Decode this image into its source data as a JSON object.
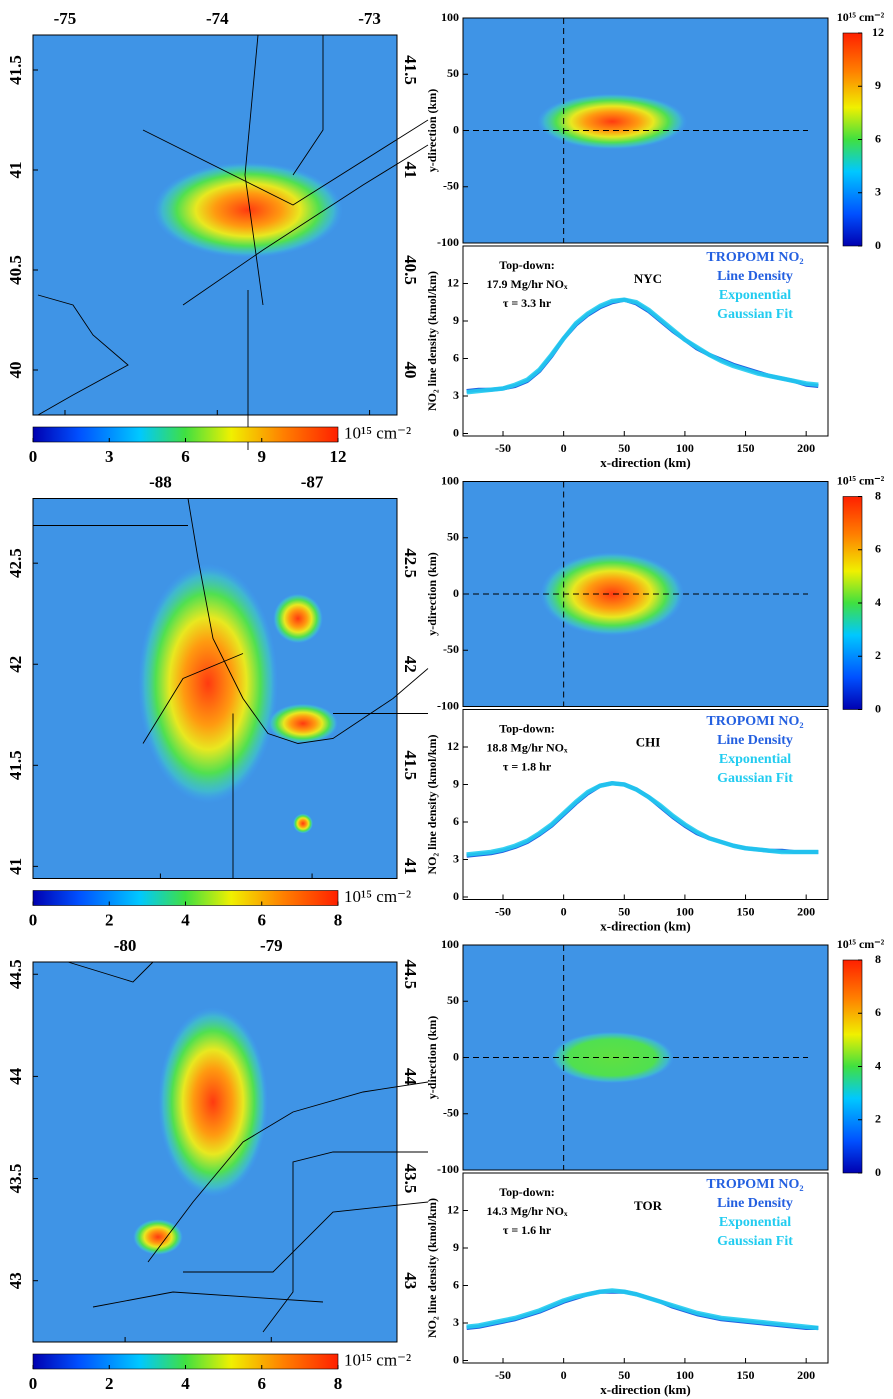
{
  "chart_data": [
    {
      "type": "map",
      "xlim": [
        -75.21,
        -72.82
      ],
      "xticks": [
        -75,
        -74,
        -73
      ],
      "ylim": [
        39.775,
        41.675
      ],
      "yticks": [
        41.5,
        41,
        40.5,
        40
      ],
      "colorbar": {
        "label": "10¹⁵ cm⁻²",
        "lim": [
          0,
          12
        ],
        "ticks": [
          0,
          3,
          6,
          9,
          12
        ]
      }
    },
    {
      "type": "heatmap",
      "ylabel": "y-direction (km)",
      "xlim": [
        -83,
        218
      ],
      "ylim": [
        -100,
        100
      ],
      "yticks": [
        100,
        50,
        0,
        -50,
        -100
      ],
      "colorbar": {
        "label": "10¹⁵ cm⁻²",
        "lim": [
          0,
          12
        ],
        "ticks": [
          0,
          3,
          6,
          9,
          12
        ]
      }
    },
    {
      "type": "line",
      "title": "NYC",
      "annotations": [
        "Top-down:",
        "17.9 Mg/hr NOₓ",
        "τ = 3.3 hr"
      ],
      "xlabel": "x-direction (km)",
      "ylabel": "NO₂ line density (kmol/km)",
      "xlim": [
        -83,
        218
      ],
      "xticks": [
        -50,
        0,
        50,
        100,
        150,
        200
      ],
      "ylim": [
        -0.2,
        15
      ],
      "yticks": [
        0,
        3,
        6,
        9,
        12
      ],
      "x": [
        -80,
        -70,
        -60,
        -50,
        -40,
        -30,
        -20,
        -10,
        0,
        10,
        20,
        30,
        40,
        50,
        60,
        70,
        80,
        90,
        100,
        110,
        120,
        130,
        140,
        150,
        160,
        170,
        180,
        190,
        200,
        210
      ],
      "series": [
        {
          "name": "TROPOMI NO₂ Line Density",
          "color": "#2460e0",
          "values": [
            3.4,
            3.5,
            3.5,
            3.6,
            3.8,
            4.2,
            5.0,
            6.2,
            7.6,
            8.7,
            9.5,
            10.1,
            10.5,
            10.7,
            10.4,
            9.8,
            9.0,
            8.2,
            7.5,
            6.8,
            6.3,
            5.9,
            5.5,
            5.2,
            4.9,
            4.6,
            4.4,
            4.2,
            3.9,
            3.8
          ]
        },
        {
          "name": "Exponential Gaussian Fit",
          "color": "#22ccf0",
          "values": [
            3.3,
            3.4,
            3.5,
            3.6,
            3.9,
            4.3,
            5.1,
            6.3,
            7.6,
            8.8,
            9.6,
            10.2,
            10.6,
            10.7,
            10.5,
            9.9,
            9.1,
            8.3,
            7.5,
            6.9,
            6.3,
            5.8,
            5.4,
            5.1,
            4.8,
            4.6,
            4.4,
            4.2,
            4.0,
            3.9
          ]
        }
      ]
    },
    {
      "type": "map",
      "xlim": [
        -88.84,
        -86.44
      ],
      "xticks": [
        -88,
        -87
      ],
      "ylim": [
        40.94,
        42.82
      ],
      "yticks": [
        42.5,
        42,
        41.5,
        41
      ],
      "colorbar": {
        "label": "10¹⁵ cm⁻²",
        "lim": [
          0,
          8
        ],
        "ticks": [
          0,
          2,
          4,
          6,
          8
        ]
      }
    },
    {
      "type": "heatmap",
      "ylabel": "y-direction (km)",
      "xlim": [
        -83,
        218
      ],
      "ylim": [
        -100,
        100
      ],
      "yticks": [
        100,
        50,
        0,
        -50,
        -100
      ],
      "colorbar": {
        "label": "10¹⁵ cm⁻²",
        "lim": [
          0,
          8
        ],
        "ticks": [
          0,
          2,
          4,
          6,
          8
        ]
      }
    },
    {
      "type": "line",
      "title": "CHI",
      "annotations": [
        "Top-down:",
        "18.8 Mg/hr NOₓ",
        "τ = 1.8 hr"
      ],
      "xlabel": "x-direction (km)",
      "ylabel": "NO₂ line density (kmol/km)",
      "xlim": [
        -83,
        218
      ],
      "xticks": [
        -50,
        0,
        50,
        100,
        150,
        200
      ],
      "ylim": [
        -0.2,
        15
      ],
      "yticks": [
        0,
        3,
        6,
        9,
        12
      ],
      "x": [
        -80,
        -70,
        -60,
        -50,
        -40,
        -30,
        -20,
        -10,
        0,
        10,
        20,
        30,
        40,
        50,
        60,
        70,
        80,
        90,
        100,
        110,
        120,
        130,
        140,
        150,
        160,
        170,
        180,
        190,
        200,
        210
      ],
      "series": [
        {
          "name": "TROPOMI NO₂ Line Density",
          "color": "#2460e0",
          "values": [
            3.3,
            3.4,
            3.5,
            3.7,
            4.0,
            4.4,
            5.0,
            5.7,
            6.6,
            7.5,
            8.3,
            8.9,
            9.1,
            9.0,
            8.6,
            8.0,
            7.2,
            6.4,
            5.7,
            5.1,
            4.7,
            4.4,
            4.1,
            3.9,
            3.8,
            3.7,
            3.7,
            3.6,
            3.6,
            3.6
          ]
        },
        {
          "name": "Exponential Gaussian Fit",
          "color": "#22ccf0",
          "values": [
            3.4,
            3.5,
            3.6,
            3.8,
            4.1,
            4.5,
            5.1,
            5.8,
            6.7,
            7.6,
            8.4,
            8.9,
            9.1,
            9.0,
            8.6,
            8.0,
            7.3,
            6.5,
            5.8,
            5.2,
            4.7,
            4.4,
            4.1,
            3.9,
            3.8,
            3.7,
            3.6,
            3.6,
            3.6,
            3.6
          ]
        }
      ]
    },
    {
      "type": "map",
      "xlim": [
        -80.63,
        -78.14
      ],
      "xticks": [
        -80,
        -79
      ],
      "ylim": [
        42.7,
        44.56
      ],
      "yticks": [
        44.5,
        44,
        43.5,
        43
      ],
      "colorbar": {
        "label": "10¹⁵ cm⁻²",
        "lim": [
          0,
          8
        ],
        "ticks": [
          0,
          2,
          4,
          6,
          8
        ]
      }
    },
    {
      "type": "heatmap",
      "ylabel": "y-direction (km)",
      "xlim": [
        -83,
        218
      ],
      "ylim": [
        -100,
        100
      ],
      "yticks": [
        100,
        50,
        0,
        -50,
        -100
      ],
      "colorbar": {
        "label": "10¹⁵ cm⁻²",
        "lim": [
          0,
          8
        ],
        "ticks": [
          0,
          2,
          4,
          6,
          8
        ]
      }
    },
    {
      "type": "line",
      "title": "TOR",
      "annotations": [
        "Top-down:",
        "14.3 Mg/hr NOₓ",
        "τ = 1.6 hr"
      ],
      "xlabel": "x-direction (km)",
      "ylabel": "NO₂ line density (kmol/km)",
      "xlim": [
        -83,
        218
      ],
      "xticks": [
        -50,
        0,
        50,
        100,
        150,
        200
      ],
      "ylim": [
        -0.2,
        15
      ],
      "yticks": [
        0,
        3,
        6,
        9,
        12
      ],
      "x": [
        -80,
        -70,
        -60,
        -50,
        -40,
        -30,
        -20,
        -10,
        0,
        10,
        20,
        30,
        40,
        50,
        60,
        70,
        80,
        90,
        100,
        110,
        120,
        130,
        140,
        150,
        160,
        170,
        180,
        190,
        200,
        210
      ],
      "series": [
        {
          "name": "TROPOMI NO₂ Line Density",
          "color": "#2460e0",
          "values": [
            2.6,
            2.7,
            2.9,
            3.1,
            3.3,
            3.6,
            3.9,
            4.3,
            4.7,
            5.0,
            5.3,
            5.5,
            5.5,
            5.5,
            5.3,
            5.0,
            4.7,
            4.3,
            4.0,
            3.7,
            3.5,
            3.3,
            3.2,
            3.1,
            3.0,
            2.9,
            2.8,
            2.7,
            2.6,
            2.6
          ]
        },
        {
          "name": "Exponential Gaussian Fit",
          "color": "#22ccf0",
          "values": [
            2.7,
            2.8,
            3.0,
            3.2,
            3.4,
            3.7,
            4.0,
            4.4,
            4.8,
            5.1,
            5.3,
            5.5,
            5.6,
            5.5,
            5.3,
            5.0,
            4.7,
            4.4,
            4.1,
            3.8,
            3.6,
            3.4,
            3.3,
            3.2,
            3.1,
            3.0,
            2.9,
            2.8,
            2.7,
            2.6
          ]
        }
      ]
    }
  ]
}
